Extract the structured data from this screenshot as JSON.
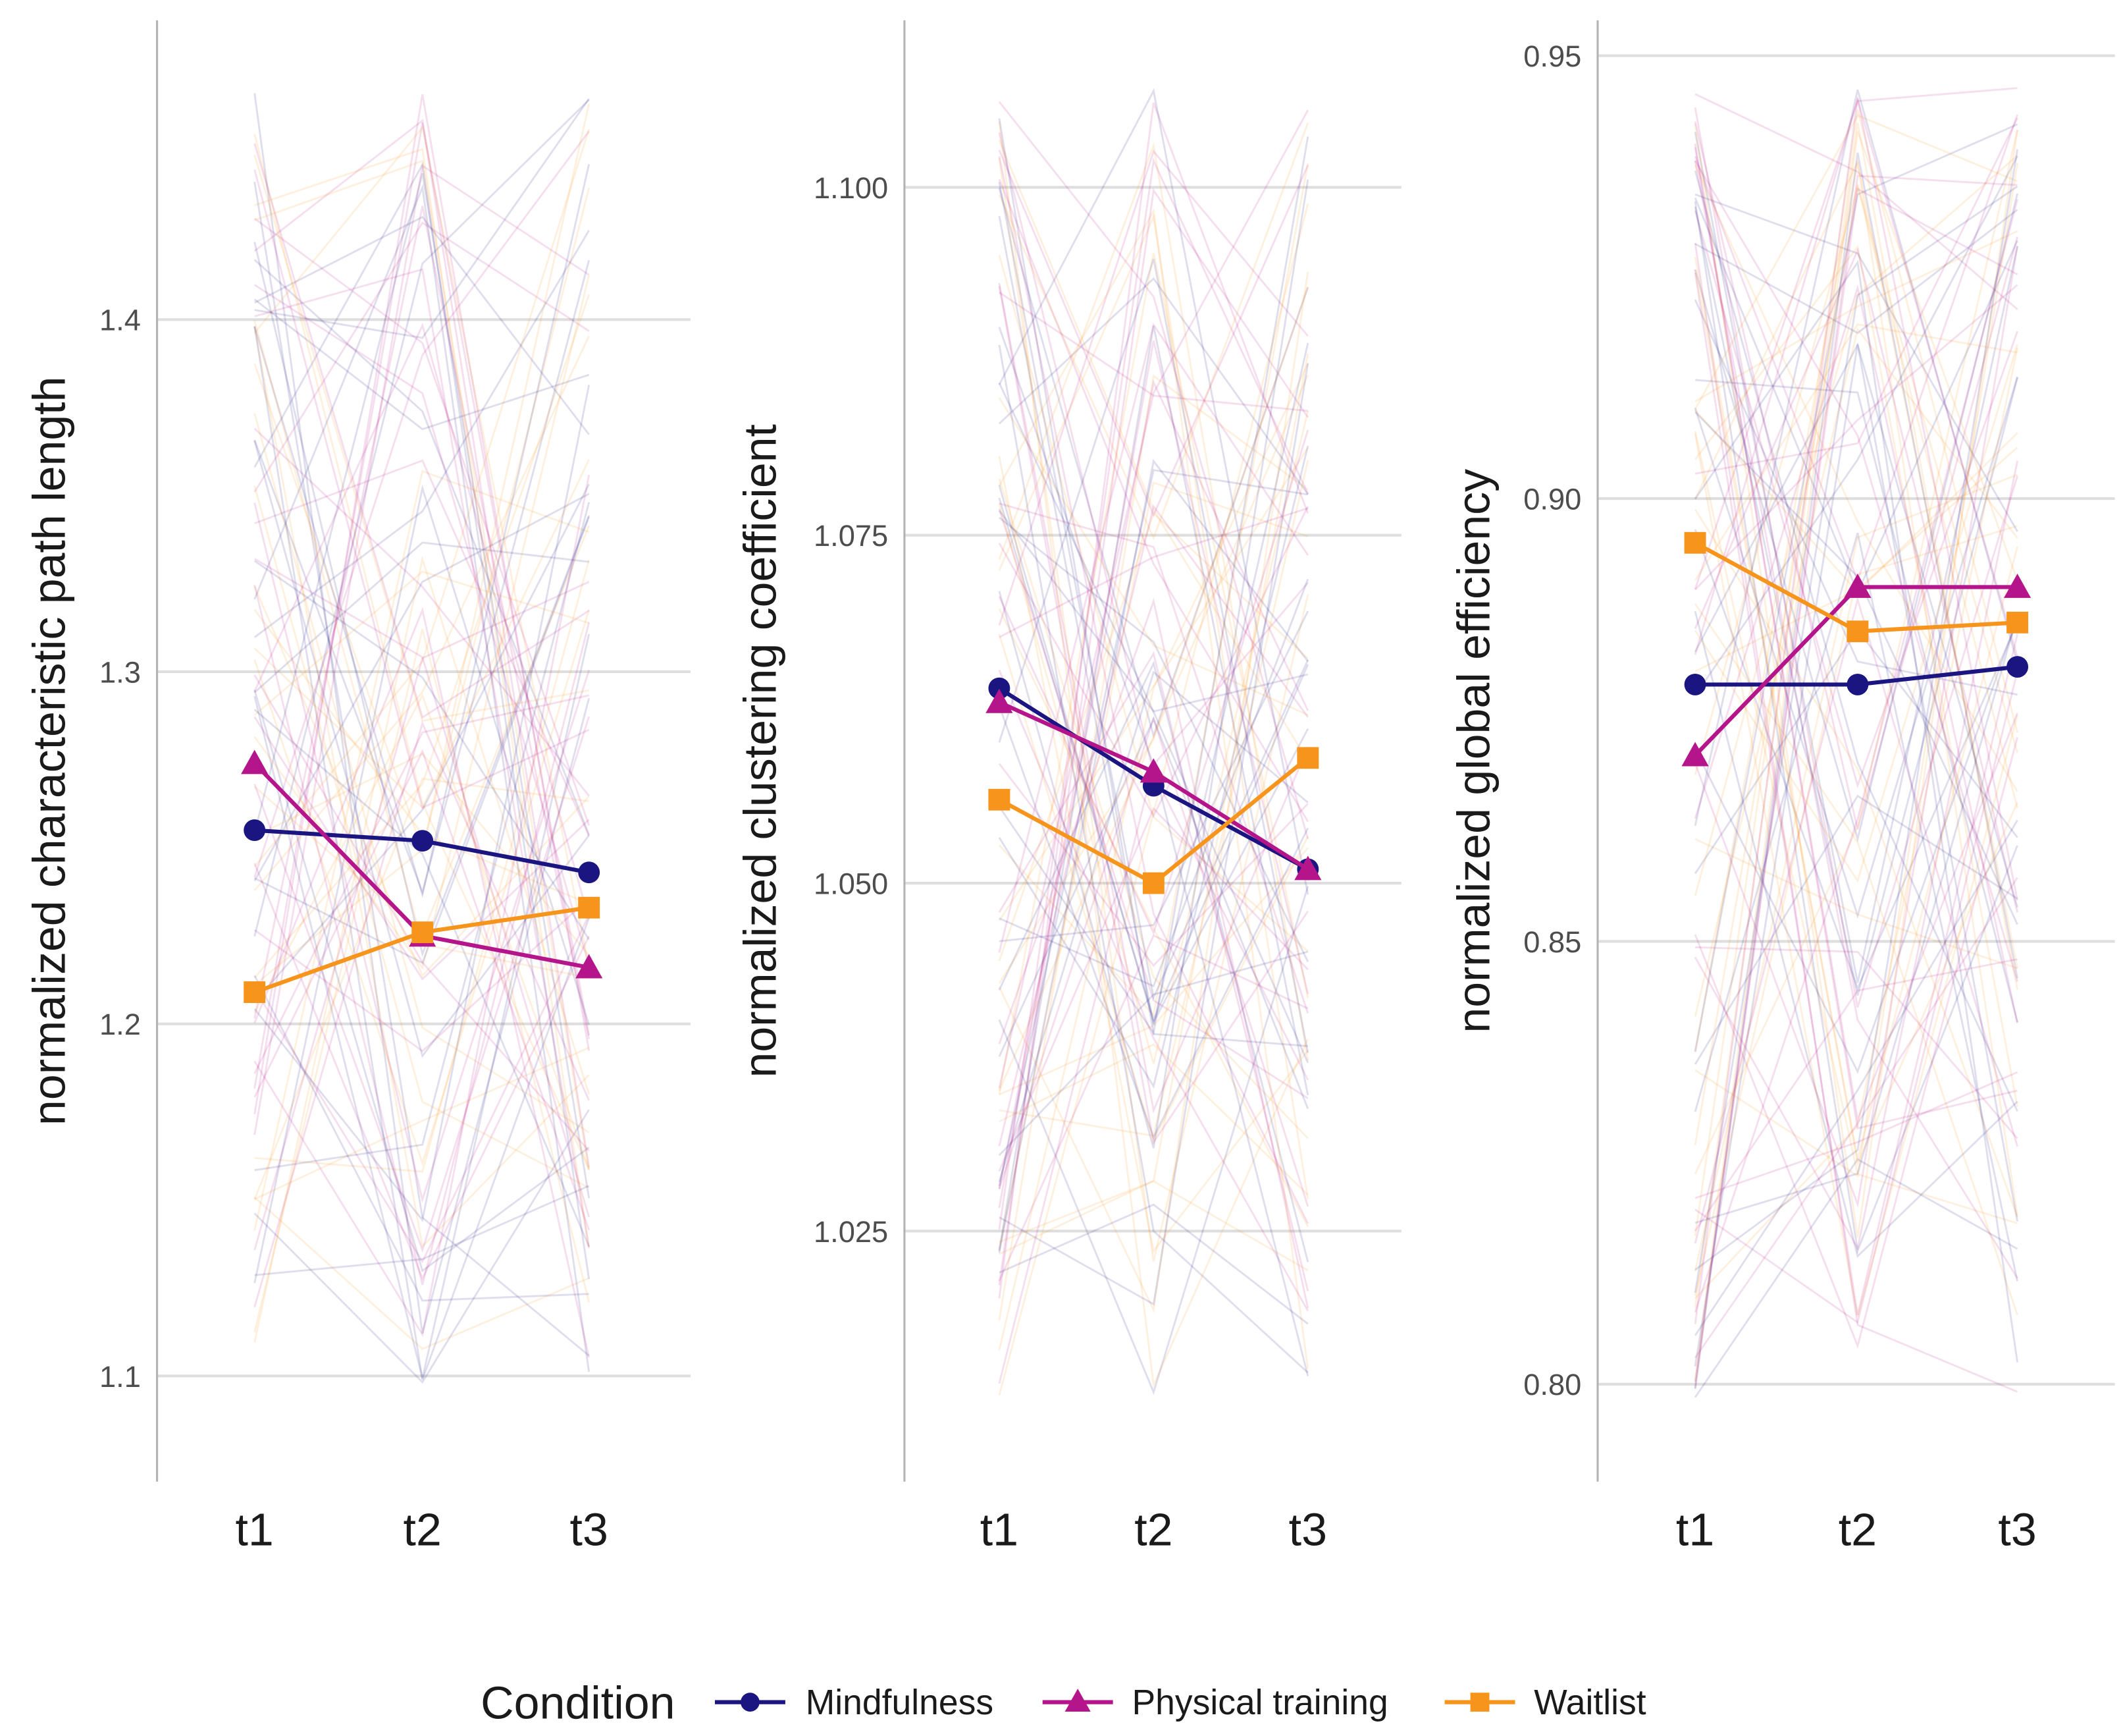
{
  "chart_data": [
    {
      "type": "line",
      "ylabel": "normalized characteristic path length",
      "categories": [
        "t1",
        "t2",
        "t3"
      ],
      "ylim": [
        1.07,
        1.485
      ],
      "yticks": [
        1.1,
        1.2,
        1.3,
        1.4
      ],
      "ytick_labels": [
        "1.1",
        "1.2",
        "1.3",
        "1.4"
      ],
      "grid": true,
      "series": [
        {
          "name": "Mindfulness",
          "values": [
            1.255,
            1.252,
            1.243
          ]
        },
        {
          "name": "Physical training",
          "values": [
            1.274,
            1.225,
            1.216
          ]
        },
        {
          "name": "Waitlist",
          "values": [
            1.209,
            1.226,
            1.233
          ]
        }
      ]
    },
    {
      "type": "line",
      "ylabel": "normalized clustering coefficient",
      "categories": [
        "t1",
        "t2",
        "t3"
      ],
      "ylim": [
        1.007,
        1.112
      ],
      "yticks": [
        1.025,
        1.05,
        1.075,
        1.1
      ],
      "ytick_labels": [
        "1.025",
        "1.050",
        "1.075",
        "1.100"
      ],
      "grid": true,
      "series": [
        {
          "name": "Mindfulness",
          "values": [
            1.064,
            1.057,
            1.051
          ]
        },
        {
          "name": "Physical training",
          "values": [
            1.063,
            1.058,
            1.051
          ]
        },
        {
          "name": "Waitlist",
          "values": [
            1.056,
            1.05,
            1.059
          ]
        }
      ]
    },
    {
      "type": "line",
      "ylabel": "normalized global efficiency",
      "categories": [
        "t1",
        "t2",
        "t3"
      ],
      "ylim": [
        0.789,
        0.954
      ],
      "yticks": [
        0.8,
        0.85,
        0.9,
        0.95
      ],
      "ytick_labels": [
        "0.80",
        "0.85",
        "0.90",
        "0.95"
      ],
      "grid": true,
      "series": [
        {
          "name": "Mindfulness",
          "values": [
            0.879,
            0.879,
            0.881
          ]
        },
        {
          "name": "Physical training",
          "values": [
            0.871,
            0.89,
            0.89
          ]
        },
        {
          "name": "Waitlist",
          "values": [
            0.895,
            0.885,
            0.886
          ]
        }
      ]
    }
  ],
  "legend": {
    "title": "Condition",
    "position": "bottom",
    "items": [
      {
        "label": "Mindfulness",
        "color": "#1b1581",
        "marker": "circle"
      },
      {
        "label": "Physical training",
        "color": "#b5158a",
        "marker": "triangle"
      },
      {
        "label": "Waitlist",
        "color": "#f6941c",
        "marker": "square"
      }
    ]
  },
  "colors": {
    "mindfulness": "#1b1581",
    "physical_training": "#b5158a",
    "waitlist": "#f6941c",
    "grid": "#dedede"
  }
}
